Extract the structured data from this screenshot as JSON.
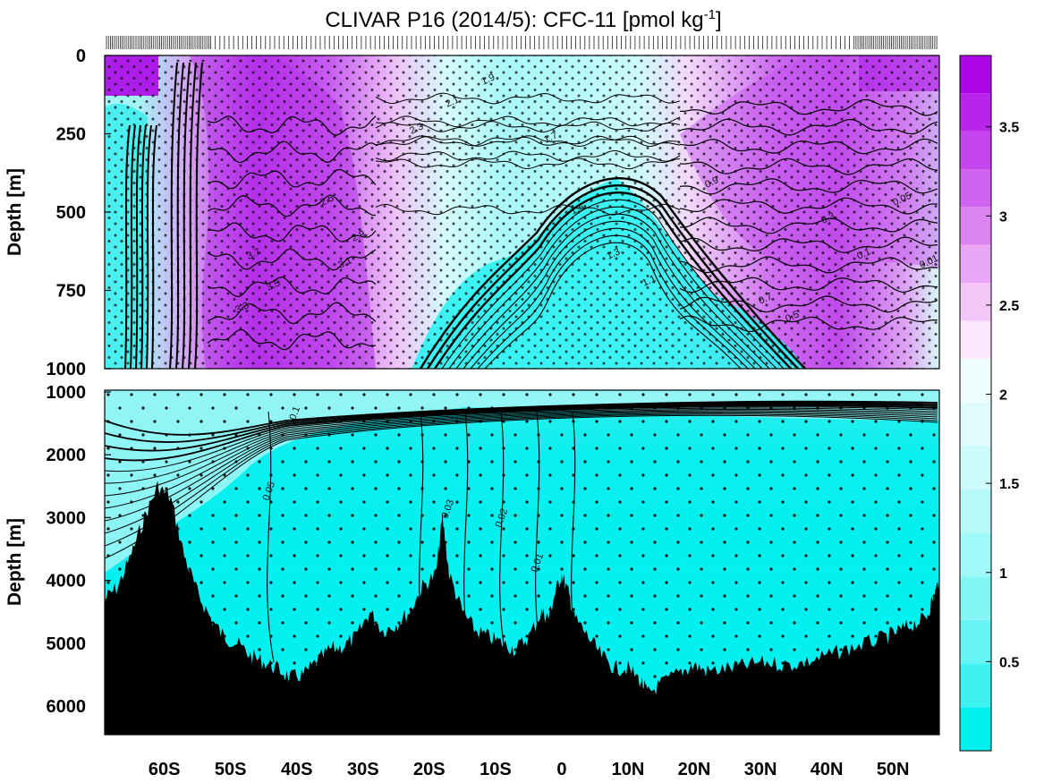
{
  "chart_data": {
    "type": "heatmap",
    "title_main": "CLIVAR P16 (2014/5): CFC-11 [pmol kg",
    "title_exp": "-1",
    "title_end": "]",
    "ylabel": "Depth [m]",
    "panels": [
      {
        "name": "upper",
        "ylim": [
          0,
          1000
        ],
        "yticks": [
          0,
          250,
          500,
          750,
          1000
        ],
        "ytick_labels": [
          "0",
          "250",
          "500",
          "750",
          "1000"
        ]
      },
      {
        "name": "lower",
        "ylim": [
          1000,
          6500
        ],
        "yticks": [
          1000,
          2000,
          3000,
          4000,
          5000,
          6000
        ],
        "ytick_labels": [
          "1000",
          "2000",
          "3000",
          "4000",
          "5000",
          "6000"
        ]
      }
    ],
    "xlim": [
      -69,
      57
    ],
    "xticks": [
      -60,
      -50,
      -40,
      -30,
      -20,
      -10,
      0,
      10,
      20,
      30,
      40,
      50
    ],
    "xtick_labels": [
      "60S",
      "50S",
      "40S",
      "30S",
      "20S",
      "10S",
      "0",
      "10N",
      "20N",
      "30N",
      "40N",
      "50N"
    ],
    "colorbar": {
      "range": [
        0,
        3.9
      ],
      "ticks": [
        0.5,
        1,
        1.5,
        2,
        2.5,
        3,
        3.5
      ],
      "tick_labels": [
        "0.5",
        "1",
        "1.5",
        "2",
        "2.5",
        "3",
        "3.5"
      ],
      "colors_low": [
        "#00f0f0",
        "#3ff2f2",
        "#66f4f4",
        "#85f6f6",
        "#a0f8f8",
        "#b8f9f9",
        "#cdfafa",
        "#e0fcfc",
        "#f0fefe"
      ],
      "colors_high": [
        "#fbe6fb",
        "#f2c6f7",
        "#e8a6f5",
        "#dc85f2",
        "#d064f0",
        "#c444ed",
        "#b825ea",
        "#ad05e8"
      ]
    },
    "upper_contour_labels": [
      "3.7",
      "3.5",
      "3.3",
      "3.1",
      "2.9",
      "2.5",
      "2.3",
      "2.1",
      "1.9",
      "1.7",
      "1.5",
      "1.3",
      "1.1",
      "0.9",
      "0.7",
      "0.5",
      "0.3",
      "0.1",
      "0.05",
      "0.01"
    ],
    "lower_contour_labels": [
      "0.1",
      "0.05",
      "0.03",
      "0.02",
      "0.01"
    ],
    "bottom_depth_m": [
      [
        -69,
        4300
      ],
      [
        -67,
        4100
      ],
      [
        -65,
        3600
      ],
      [
        -63,
        3000
      ],
      [
        -61,
        2500
      ],
      [
        -59,
        2700
      ],
      [
        -57,
        3600
      ],
      [
        -55,
        4200
      ],
      [
        -53,
        4600
      ],
      [
        -51,
        4900
      ],
      [
        -49,
        5000
      ],
      [
        -47,
        5200
      ],
      [
        -45,
        5300
      ],
      [
        -43,
        5400
      ],
      [
        -41,
        5550
      ],
      [
        -39,
        5500
      ],
      [
        -37,
        5300
      ],
      [
        -35,
        5100
      ],
      [
        -33,
        5050
      ],
      [
        -31,
        4900
      ],
      [
        -29,
        4500
      ],
      [
        -27,
        4800
      ],
      [
        -25,
        4700
      ],
      [
        -23,
        4500
      ],
      [
        -21,
        4100
      ],
      [
        -19,
        3900
      ],
      [
        -18,
        3000
      ],
      [
        -17,
        3900
      ],
      [
        -15,
        4500
      ],
      [
        -13,
        4800
      ],
      [
        -11,
        4900
      ],
      [
        -9,
        5000
      ],
      [
        -7,
        5100
      ],
      [
        -5,
        4900
      ],
      [
        -3,
        4500
      ],
      [
        -2,
        4600
      ],
      [
        -1,
        4200
      ],
      [
        0,
        3900
      ],
      [
        1,
        4200
      ],
      [
        2,
        4600
      ],
      [
        4,
        4900
      ],
      [
        6,
        5200
      ],
      [
        8,
        5400
      ],
      [
        10,
        5400
      ],
      [
        12,
        5600
      ],
      [
        13,
        5800
      ],
      [
        15,
        5650
      ],
      [
        18,
        5450
      ],
      [
        20,
        5350
      ],
      [
        22,
        5450
      ],
      [
        25,
        5400
      ],
      [
        28,
        5350
      ],
      [
        31,
        5300
      ],
      [
        34,
        5350
      ],
      [
        37,
        5300
      ],
      [
        40,
        5200
      ],
      [
        43,
        5100
      ],
      [
        46,
        5000
      ],
      [
        49,
        4900
      ],
      [
        51,
        4800
      ],
      [
        53,
        4700
      ],
      [
        55,
        4600
      ],
      [
        56,
        4300
      ],
      [
        57,
        4000
      ]
    ]
  }
}
